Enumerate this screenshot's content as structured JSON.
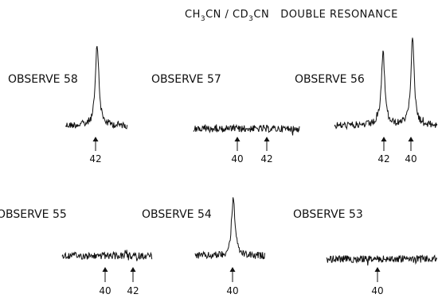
{
  "title": {
    "species_1": "CH",
    "sub_1": "3",
    "mid": "CN / CD",
    "sub_2": "3",
    "species_2": "CN",
    "subtitle": "DOUBLE RESONANCE"
  },
  "panels": [
    {
      "label": "OBSERVE 58",
      "peaks": [
        1.0
      ],
      "markers": [
        "42"
      ]
    },
    {
      "label": "OBSERVE 57",
      "peaks": [],
      "markers": [
        "40",
        "42"
      ]
    },
    {
      "label": "OBSERVE 56",
      "peaks": [
        0.85,
        1.0
      ],
      "markers": [
        "42",
        "40"
      ]
    },
    {
      "label": "OBSERVE 55",
      "peaks": [],
      "markers": [
        "40",
        "42"
      ]
    },
    {
      "label": "OBSERVE 54",
      "peaks": [
        0.9
      ],
      "markers": [
        "40"
      ]
    },
    {
      "label": "OBSERVE 53",
      "peaks": [],
      "markers": [
        "40"
      ]
    }
  ]
}
